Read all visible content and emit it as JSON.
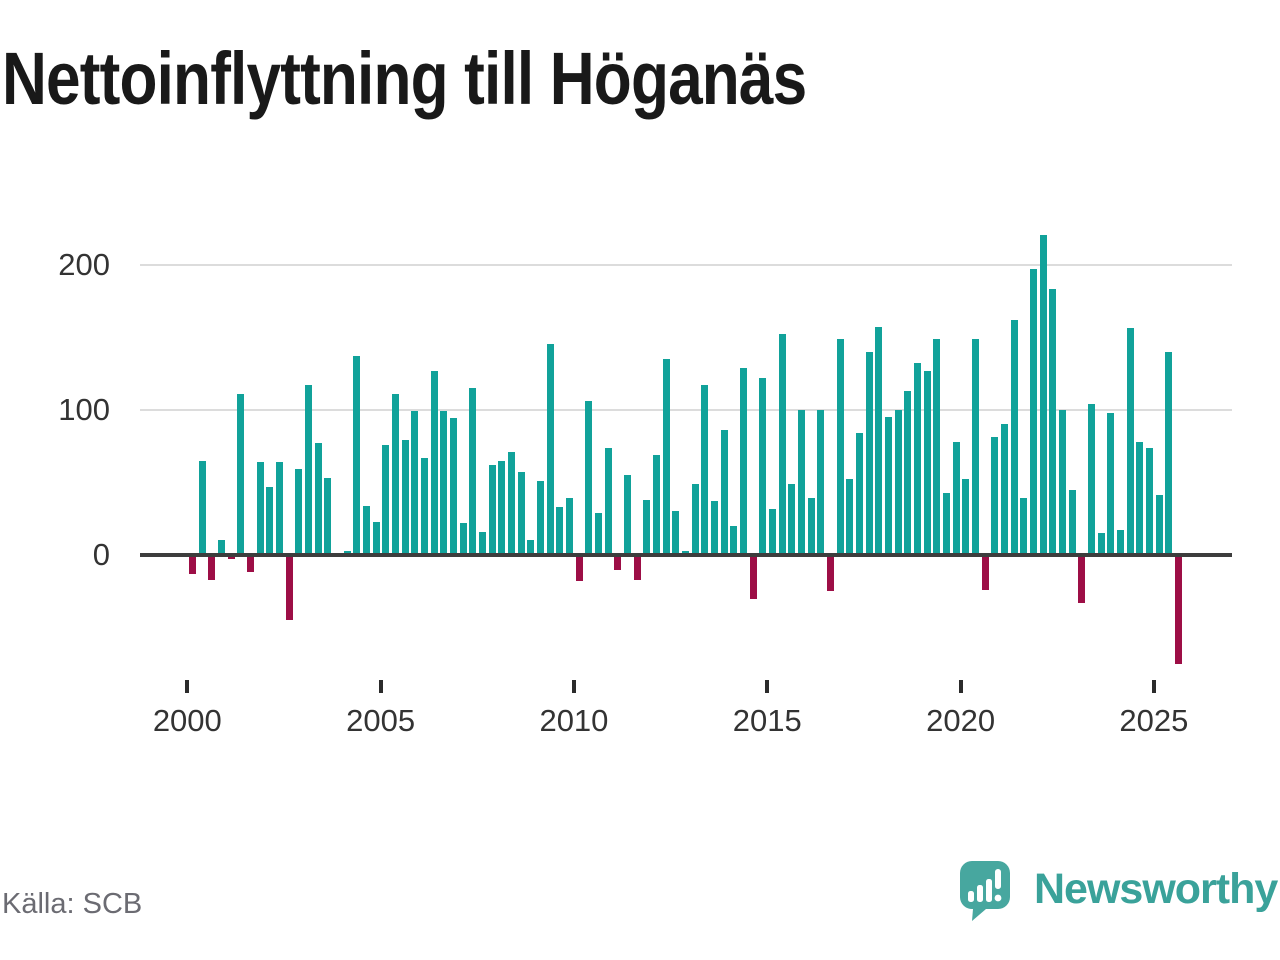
{
  "chart_data": {
    "type": "bar",
    "title": "Nettoinflyttning till Höganäs",
    "frequency": "quarterly",
    "start_period": "2000Q1",
    "end_period": "2025Q3",
    "x_axis": {
      "tick_years": [
        2000,
        2005,
        2010,
        2015,
        2020,
        2025
      ]
    },
    "y_axis": {
      "ticks": [
        0,
        100,
        200
      ],
      "range": [
        -90,
        235
      ]
    },
    "grid": "horizontal",
    "legend": "none",
    "colors": {
      "positive": "#11a29a",
      "negative": "#9d0e46",
      "zero_line": "#3d3d3d"
    },
    "series": [
      {
        "name": "Nettoinflyttning",
        "values": [
          -13,
          65,
          -17,
          10,
          -3,
          111,
          -12,
          64,
          47,
          64,
          -45,
          59,
          117,
          77,
          53,
          0,
          3,
          137,
          34,
          23,
          76,
          111,
          79,
          99,
          67,
          127,
          99,
          94,
          22,
          115,
          16,
          62,
          65,
          71,
          57,
          10,
          51,
          145,
          33,
          39,
          -18,
          106,
          29,
          74,
          -10,
          55,
          -17,
          38,
          69,
          135,
          30,
          3,
          49,
          117,
          37,
          86,
          20,
          129,
          -30,
          122,
          32,
          152,
          49,
          100,
          39,
          100,
          -25,
          149,
          52,
          84,
          140,
          157,
          95,
          100,
          113,
          132,
          127,
          149,
          43,
          78,
          52,
          149,
          -24,
          81,
          90,
          162,
          39,
          197,
          220,
          183,
          100,
          45,
          -33,
          104,
          15,
          98,
          17,
          156,
          78,
          74,
          41,
          140,
          -75
        ]
      }
    ]
  },
  "footer": {
    "source": "Källa: SCB",
    "brand": "Newsworthy"
  }
}
